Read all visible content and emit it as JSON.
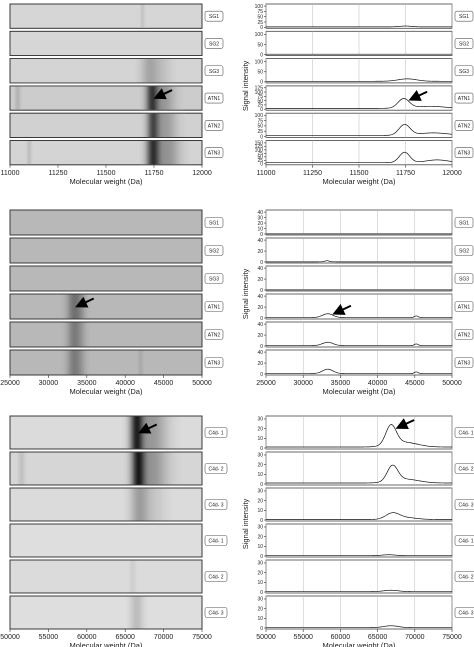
{
  "chart_data": [
    {
      "type": "heatmap",
      "xlabel": "Molecular weight (Da)",
      "xlim": [
        11000,
        12000
      ],
      "xticks": [
        11000,
        11250,
        11500,
        11750,
        12000
      ],
      "lanes": [
        "SG1",
        "SG2",
        "SG3",
        "ATN1",
        "ATN2",
        "ATN3"
      ],
      "background_gray": [
        0.84,
        0.84,
        0.83,
        0.8,
        0.82,
        0.83
      ],
      "bands": [
        [
          {
            "center": 11690,
            "width": 8,
            "strength": 0.08
          }
        ],
        [],
        [
          {
            "center": 11725,
            "width": 30,
            "strength": 0.18
          },
          {
            "center": 11780,
            "width": 40,
            "strength": 0.1
          }
        ],
        [
          {
            "center": 11040,
            "width": 10,
            "strength": 0.12
          },
          {
            "center": 11740,
            "width": 22,
            "strength": 0.65
          },
          {
            "center": 11800,
            "width": 40,
            "strength": 0.25
          }
        ],
        [
          {
            "center": 11745,
            "width": 22,
            "strength": 0.6
          },
          {
            "center": 11810,
            "width": 40,
            "strength": 0.25
          }
        ],
        [
          {
            "center": 11100,
            "width": 8,
            "strength": 0.1
          },
          {
            "center": 11745,
            "width": 24,
            "strength": 0.7
          },
          {
            "center": 11820,
            "width": 45,
            "strength": 0.3
          }
        ]
      ],
      "arrow_lane": "ATN1"
    },
    {
      "type": "line",
      "xlabel": "Molecular weight (Da)",
      "ylabel": "Signal intensity",
      "xlim": [
        11000,
        12000
      ],
      "xticks": [
        11000,
        11250,
        11500,
        11750,
        12000
      ],
      "lanes": [
        "SG1",
        "SG2",
        "SG3",
        "ATN1",
        "ATN2",
        "ATN3"
      ],
      "yticks": [
        [
          0,
          25,
          50,
          75,
          100
        ],
        [
          0,
          50,
          100
        ],
        [
          0,
          50,
          100
        ],
        [
          0,
          25,
          50,
          75,
          100,
          125
        ],
        [
          0,
          25,
          50,
          75,
          100
        ],
        [
          0,
          25,
          50,
          75,
          100,
          125,
          150
        ]
      ],
      "ymax": [
        105,
        110,
        110,
        130,
        105,
        160
      ],
      "series": [
        {
          "baseline": 2,
          "peaks": [
            {
              "center": 11750,
              "width": 30,
              "height": 4
            }
          ]
        },
        {
          "baseline": 2,
          "peaks": []
        },
        {
          "baseline": 3,
          "peaks": [
            {
              "center": 11760,
              "width": 50,
              "height": 12
            }
          ]
        },
        {
          "baseline": 5,
          "peaks": [
            {
              "center": 11740,
              "width": 30,
              "height": 55
            },
            {
              "center": 11880,
              "width": 80,
              "height": 12
            }
          ]
        },
        {
          "baseline": 5,
          "peaks": [
            {
              "center": 11745,
              "width": 30,
              "height": 50
            },
            {
              "center": 11900,
              "width": 80,
              "height": 12
            }
          ]
        },
        {
          "baseline": 8,
          "peaks": [
            {
              "center": 11745,
              "width": 28,
              "height": 75
            },
            {
              "center": 11920,
              "width": 60,
              "height": 20
            }
          ]
        }
      ],
      "arrow_lane": "ATN1"
    },
    {
      "type": "heatmap",
      "xlabel": "Molecular weight (Da)",
      "xlim": [
        25000,
        50000
      ],
      "xticks": [
        25000,
        30000,
        35000,
        40000,
        45000,
        50000
      ],
      "lanes": [
        "SG1",
        "SG2",
        "SG3",
        "ATN1",
        "ATN2",
        "ATN3"
      ],
      "background_gray": [
        0.72,
        0.72,
        0.72,
        0.72,
        0.72,
        0.72
      ],
      "bands": [
        [],
        [],
        [],
        [
          {
            "center": 33300,
            "width": 600,
            "strength": 0.35
          },
          {
            "center": 34200,
            "width": 500,
            "strength": 0.15
          }
        ],
        [
          {
            "center": 33300,
            "width": 600,
            "strength": 0.3
          },
          {
            "center": 34200,
            "width": 500,
            "strength": 0.12
          }
        ],
        [
          {
            "center": 33300,
            "width": 600,
            "strength": 0.3
          },
          {
            "center": 34200,
            "width": 500,
            "strength": 0.12
          },
          {
            "center": 42000,
            "width": 200,
            "strength": 0.08
          }
        ]
      ],
      "arrow_lane": "ATN1"
    },
    {
      "type": "line",
      "xlabel": "Molecular weight (Da)",
      "ylabel": "Signal intensity",
      "xlim": [
        25000,
        50000
      ],
      "xticks": [
        25000,
        30000,
        35000,
        40000,
        45000,
        50000
      ],
      "lanes": [
        "SG1",
        "SG2",
        "SG3",
        "ATN1",
        "ATN2",
        "ATN3"
      ],
      "yticks": [
        [
          0,
          10,
          20,
          30,
          40
        ],
        [
          0,
          20,
          40
        ],
        [
          0,
          20,
          40
        ],
        [
          0,
          20,
          40
        ],
        [
          0,
          20,
          40
        ],
        [
          0,
          20,
          40
        ]
      ],
      "ymax": [
        42,
        42,
        42,
        42,
        42,
        42
      ],
      "series": [
        {
          "baseline": 0.3,
          "peaks": []
        },
        {
          "baseline": 0.3,
          "peaks": [
            {
              "center": 33200,
              "width": 300,
              "height": 2
            }
          ]
        },
        {
          "baseline": 0.3,
          "peaks": []
        },
        {
          "baseline": 0.8,
          "peaks": [
            {
              "center": 33300,
              "width": 700,
              "height": 7
            },
            {
              "center": 45200,
              "width": 250,
              "height": 3
            }
          ]
        },
        {
          "baseline": 0.8,
          "peaks": [
            {
              "center": 33300,
              "width": 700,
              "height": 6
            },
            {
              "center": 45200,
              "width": 250,
              "height": 3
            }
          ]
        },
        {
          "baseline": 0.8,
          "peaks": [
            {
              "center": 33300,
              "width": 700,
              "height": 8
            },
            {
              "center": 45200,
              "width": 250,
              "height": 3
            }
          ]
        }
      ],
      "arrow_lane": "ATN1"
    },
    {
      "type": "heatmap",
      "xlabel": "Molecular weight (Da)",
      "xlim": [
        50000,
        75000
      ],
      "xticks": [
        50000,
        55000,
        60000,
        65000,
        70000,
        75000
      ],
      "lanes": [
        "C4d- 1",
        "C4d- 2",
        "C4d- 3",
        "C4d- 1",
        "C4d- 2",
        "C4d- 3"
      ],
      "background_gray": [
        0.86,
        0.84,
        0.86,
        0.87,
        0.86,
        0.87
      ],
      "bands": [
        [
          {
            "center": 66500,
            "width": 600,
            "strength": 0.75
          },
          {
            "center": 68500,
            "width": 1400,
            "strength": 0.3
          }
        ],
        [
          {
            "center": 51500,
            "width": 300,
            "strength": 0.1
          },
          {
            "center": 66700,
            "width": 600,
            "strength": 0.75
          },
          {
            "center": 68500,
            "width": 1400,
            "strength": 0.3
          }
        ],
        [
          {
            "center": 66800,
            "width": 800,
            "strength": 0.25
          },
          {
            "center": 68500,
            "width": 1200,
            "strength": 0.1
          }
        ],
        [],
        [
          {
            "center": 66000,
            "width": 300,
            "strength": 0.06
          }
        ],
        [
          {
            "center": 66500,
            "width": 600,
            "strength": 0.15
          }
        ]
      ],
      "arrow_lane": "C4d- 1"
    },
    {
      "type": "line",
      "xlabel": "Molecular weight (Da)",
      "ylabel": "Signal intensity",
      "xlim": [
        50000,
        75000
      ],
      "xticks": [
        50000,
        55000,
        60000,
        65000,
        70000,
        75000
      ],
      "lanes": [
        "C4d- 1",
        "C4d- 2",
        "C4d- 3",
        "C4d- 1",
        "C4d- 2",
        "C4d- 3"
      ],
      "yticks": [
        [
          0,
          10,
          20,
          30
        ],
        [
          0,
          10,
          20,
          30
        ],
        [
          0,
          10,
          20,
          30
        ],
        [
          0,
          10,
          20,
          30
        ],
        [
          0,
          10,
          20,
          30
        ],
        [
          0,
          10,
          20,
          30
        ]
      ],
      "ymax": [
        32,
        32,
        32,
        32,
        32,
        32
      ],
      "series": [
        {
          "baseline": 1,
          "peaks": [
            {
              "center": 66800,
              "width": 700,
              "height": 20
            },
            {
              "center": 68500,
              "width": 1800,
              "height": 5
            }
          ]
        },
        {
          "baseline": 1,
          "peaks": [
            {
              "center": 67000,
              "width": 700,
              "height": 16
            },
            {
              "center": 68700,
              "width": 1800,
              "height": 4
            }
          ]
        },
        {
          "baseline": 0.5,
          "peaks": [
            {
              "center": 67000,
              "width": 900,
              "height": 6
            },
            {
              "center": 68700,
              "width": 1500,
              "height": 2
            }
          ]
        },
        {
          "baseline": 0.3,
          "peaks": [
            {
              "center": 66500,
              "width": 900,
              "height": 1
            }
          ]
        },
        {
          "baseline": 0.3,
          "peaks": [
            {
              "center": 66800,
              "width": 1000,
              "height": 1.5
            }
          ]
        },
        {
          "baseline": 0.3,
          "peaks": [
            {
              "center": 66800,
              "width": 1000,
              "height": 2
            }
          ]
        }
      ],
      "arrow_lane": "C4d- 1"
    }
  ]
}
